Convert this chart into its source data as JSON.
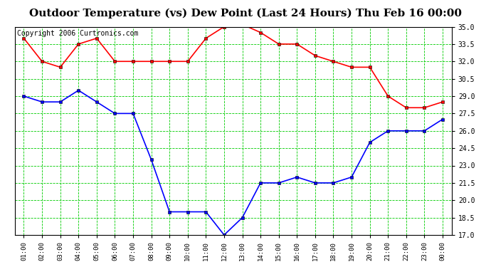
{
  "title": "Outdoor Temperature (vs) Dew Point (Last 24 Hours) Thu Feb 16 00:00",
  "copyright": "Copyright 2006 Curtronics.com",
  "x_labels": [
    "01:00",
    "02:00",
    "03:00",
    "04:00",
    "05:00",
    "06:00",
    "07:00",
    "08:00",
    "09:00",
    "10:00",
    "11:00",
    "12:00",
    "13:00",
    "14:00",
    "15:00",
    "16:00",
    "17:00",
    "18:00",
    "19:00",
    "20:00",
    "21:00",
    "22:00",
    "23:00",
    "00:00"
  ],
  "temp_values": [
    34.0,
    32.0,
    31.5,
    33.5,
    34.0,
    32.0,
    32.0,
    32.0,
    32.0,
    32.0,
    34.0,
    35.0,
    35.2,
    34.5,
    33.5,
    33.5,
    32.5,
    32.0,
    31.5,
    31.5,
    29.0,
    28.0,
    28.0,
    28.5
  ],
  "dew_values": [
    29.0,
    28.5,
    28.5,
    29.5,
    28.5,
    27.5,
    27.5,
    23.5,
    19.0,
    19.0,
    19.0,
    17.0,
    18.5,
    21.5,
    21.5,
    22.0,
    21.5,
    21.5,
    22.0,
    25.0,
    26.0,
    26.0,
    26.0,
    27.0
  ],
  "temp_color": "#ff0000",
  "dew_color": "#0000ff",
  "bg_color": "#ffffff",
  "plot_bg_color": "#ffffff",
  "grid_color": "#00cc00",
  "ylim_min": 17.0,
  "ylim_max": 35.0,
  "ytick_step": 1.5,
  "title_fontsize": 11,
  "copyright_fontsize": 7,
  "marker": "s",
  "marker_size": 3,
  "linewidth": 1.2
}
